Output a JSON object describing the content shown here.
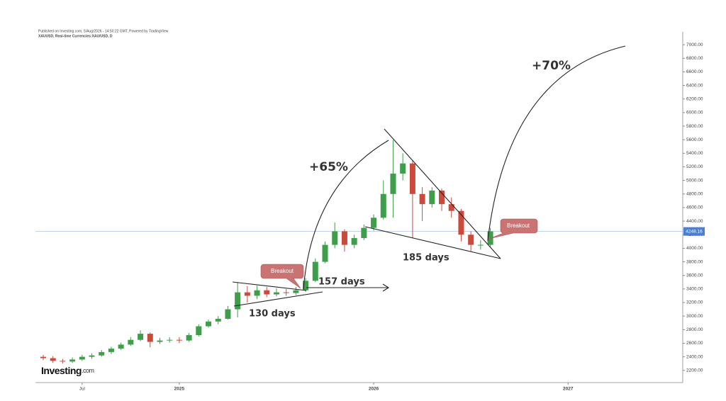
{
  "chart_data": {
    "type": "candlestick",
    "title": "Published on Investing.com, 5/Aug/2026 - 14:50:22 GMT, Powered by TradingView",
    "subtitle": "XAUUSD, Real-time Currencies:XAU/USD, D",
    "brand": "Investing",
    "brand_suffix": ".com",
    "x": [
      2024.3,
      2024.35,
      2024.4,
      2024.45,
      2024.5,
      2024.55,
      2024.6,
      2024.65,
      2024.7,
      2024.75,
      2024.8,
      2024.85,
      2024.9,
      2024.95,
      2025.0,
      2025.05,
      2025.1,
      2025.15,
      2025.2,
      2025.25,
      2025.3,
      2025.35,
      2025.4,
      2025.45,
      2025.5,
      2025.55,
      2025.6,
      2025.65,
      2025.7,
      2025.75,
      2025.8,
      2025.85,
      2025.9,
      2025.95,
      2026.0,
      2026.05,
      2026.1,
      2026.15,
      2026.2,
      2026.25,
      2026.3,
      2026.35,
      2026.4,
      2026.45,
      2026.5,
      2026.55,
      2026.6
    ],
    "open": [
      2400,
      2380,
      2340,
      2330,
      2360,
      2400,
      2420,
      2470,
      2520,
      2580,
      2650,
      2740,
      2620,
      2640,
      2650,
      2640,
      2720,
      2850,
      2920,
      2960,
      3100,
      3350,
      3300,
      3380,
      3320,
      3350,
      3340,
      3380,
      3520,
      3800,
      4050,
      4250,
      4050,
      4150,
      4300,
      4450,
      4800,
      5100,
      5250,
      4800,
      4650,
      4850,
      4650,
      4550,
      4200,
      4050,
      4050
    ],
    "high": [
      2430,
      2410,
      2370,
      2390,
      2430,
      2450,
      2500,
      2550,
      2610,
      2690,
      2790,
      2760,
      2680,
      2690,
      2690,
      2750,
      2880,
      2950,
      3000,
      3150,
      3500,
      3440,
      3450,
      3430,
      3410,
      3400,
      3430,
      3560,
      3850,
      4100,
      4380,
      4280,
      4200,
      4350,
      4500,
      5000,
      5595,
      5400,
      5300,
      4900,
      4900,
      4880,
      4750,
      4580,
      4250,
      4120,
      4300
    ],
    "low": [
      2350,
      2310,
      2300,
      2310,
      2340,
      2370,
      2400,
      2440,
      2500,
      2560,
      2630,
      2540,
      2590,
      2610,
      2600,
      2620,
      2700,
      2830,
      2880,
      2950,
      2980,
      3200,
      3250,
      3280,
      3290,
      3300,
      3310,
      3360,
      3500,
      3780,
      4000,
      3950,
      4000,
      4120,
      4260,
      4420,
      4450,
      5000,
      4150,
      4400,
      4600,
      4550,
      4450,
      4100,
      3950,
      3980,
      4020
    ],
    "close": [
      2380,
      2340,
      2330,
      2360,
      2400,
      2420,
      2470,
      2520,
      2580,
      2650,
      2740,
      2620,
      2640,
      2650,
      2640,
      2720,
      2850,
      2920,
      2960,
      3100,
      3350,
      3300,
      3380,
      3320,
      3350,
      3340,
      3380,
      3520,
      3800,
      4050,
      4250,
      4050,
      4150,
      4300,
      4450,
      4800,
      5100,
      5250,
      4800,
      4650,
      4850,
      4650,
      4550,
      4200,
      4050,
      4050,
      4250
    ],
    "up_color": "#3e9e4a",
    "down_color": "#cc4a3c",
    "last_price": 4248.16,
    "last_price_color": "#4a7fd4",
    "xlim": [
      2024.26,
      2027.59
    ],
    "xticks": [
      {
        "value": 2024.5,
        "label": "Jul"
      },
      2025,
      2026,
      2027
    ],
    "ylim": [
      2020,
      7085
    ],
    "yticks": [
      {
        "value": 2200,
        "label": "2200.00"
      },
      {
        "value": 2400,
        "label": "2400.00"
      },
      {
        "value": 2600,
        "label": "2600.00"
      },
      {
        "value": 2800,
        "label": "2800.00"
      },
      {
        "value": 3000,
        "label": "3000.00"
      },
      {
        "value": 3200,
        "label": "3200.00"
      },
      {
        "value": 3400,
        "label": "3400.00"
      },
      {
        "value": 3600,
        "label": "3600.00"
      },
      {
        "value": 3800,
        "label": "3800.00"
      },
      {
        "value": 4000,
        "label": "4000.00"
      },
      {
        "value": 4200,
        "label": "4200.00"
      },
      {
        "value": 4400,
        "label": "4400.00"
      },
      {
        "value": 4600,
        "label": "4600.00"
      },
      {
        "value": 4800,
        "label": "4800.00"
      },
      {
        "value": 5000,
        "label": "5000.00"
      },
      {
        "value": 5200,
        "label": "5200.00"
      },
      {
        "value": 5400,
        "label": "5400.00"
      },
      {
        "value": 5600,
        "label": "5600.00"
      },
      {
        "value": 5800,
        "label": "5800.00"
      },
      {
        "value": 6000,
        "label": "6000.00"
      },
      {
        "value": 6200,
        "label": "6200.00"
      },
      {
        "value": 6400,
        "label": "6400.00"
      },
      {
        "value": 6600,
        "label": "6600.00"
      },
      {
        "value": 6800,
        "label": "6800.00"
      },
      {
        "value": 7000,
        "label": "7000.00"
      }
    ],
    "annotations": [
      "+65%",
      "+70%",
      "157 days",
      "130 days",
      "185 days",
      "Breakout",
      "Breakout"
    ]
  }
}
